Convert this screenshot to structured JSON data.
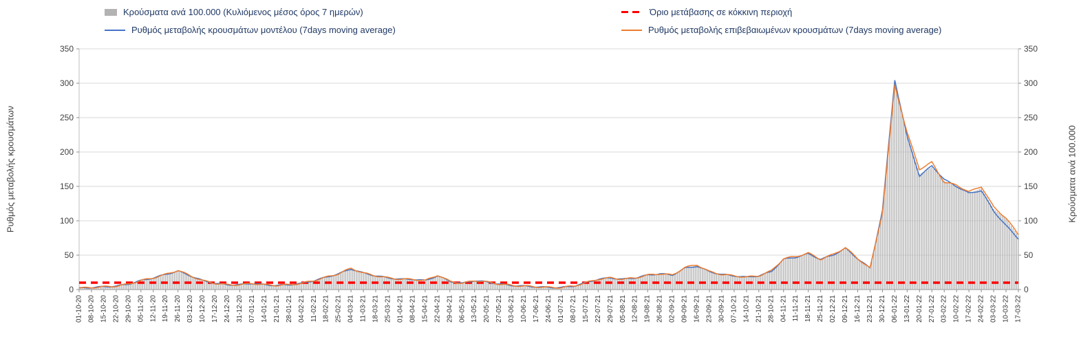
{
  "axes": {
    "left_title": "Ρυθμός μεταβολής κρουσμάτων",
    "right_title": "Κρούσματα ανά 100.000",
    "ylim": [
      0,
      350
    ],
    "ytick_step": 50
  },
  "chart_data": {
    "type": "bar",
    "title": "",
    "legend_position": "top",
    "grid": true,
    "ylim": [
      0,
      350
    ],
    "categories": [
      "01-10-20",
      "08-10-20",
      "15-10-20",
      "22-10-20",
      "29-10-20",
      "05-11-20",
      "12-11-20",
      "19-11-20",
      "26-11-20",
      "03-12-20",
      "10-12-20",
      "17-12-20",
      "24-12-20",
      "31-12-20",
      "07-01-21",
      "14-01-21",
      "21-01-21",
      "28-01-21",
      "04-02-21",
      "11-02-21",
      "18-02-21",
      "25-02-21",
      "04-03-21",
      "11-03-21",
      "18-03-21",
      "25-03-21",
      "01-04-21",
      "08-04-21",
      "15-04-21",
      "22-04-21",
      "29-04-21",
      "06-05-21",
      "13-05-21",
      "20-05-21",
      "27-05-21",
      "03-06-21",
      "10-06-21",
      "17-06-21",
      "24-06-21",
      "01-07-21",
      "08-07-21",
      "15-07-21",
      "22-07-21",
      "29-07-21",
      "05-08-21",
      "12-08-21",
      "19-08-21",
      "26-08-21",
      "02-09-21",
      "09-09-21",
      "16-09-21",
      "23-09-21",
      "30-09-21",
      "07-10-21",
      "14-10-21",
      "21-10-21",
      "28-10-21",
      "04-11-21",
      "11-11-21",
      "18-11-21",
      "25-11-21",
      "02-12-21",
      "09-12-21",
      "16-12-21",
      "23-12-21",
      "30-12-21",
      "06-01-22",
      "13-01-22",
      "20-01-22",
      "27-01-22",
      "03-02-22",
      "10-02-22",
      "17-02-22",
      "24-02-22",
      "03-03-22",
      "10-03-22",
      "17-03-22"
    ],
    "series": [
      {
        "name": "Κρούσματα ανά 100.000 (Κυλιόμενος μέσος όρος 7 ημερών)",
        "type": "bar",
        "color": "#B3B3B3",
        "values": [
          2,
          3,
          4,
          5,
          8,
          13,
          17,
          22,
          27,
          20,
          13,
          9,
          7,
          7,
          9,
          7,
          6,
          7,
          9,
          13,
          18,
          23,
          30,
          24,
          20,
          17,
          15,
          15,
          13,
          20,
          12,
          9,
          13,
          11,
          8,
          6,
          5,
          4,
          3,
          3,
          5,
          10,
          15,
          17,
          15,
          17,
          21,
          23,
          21,
          31,
          35,
          26,
          22,
          20,
          18,
          20,
          26,
          44,
          47,
          52,
          44,
          50,
          60,
          45,
          31,
          110,
          300,
          225,
          168,
          178,
          158,
          150,
          140,
          147,
          117,
          103,
          78
        ]
      },
      {
        "name": "Ρυθμός μεταβολής κρουσμάτων μοντέλου (7days moving average)",
        "type": "line",
        "color": "#4472C4",
        "values": [
          2,
          3,
          4,
          5,
          8,
          13,
          17,
          22,
          27,
          20,
          13,
          9,
          7,
          7,
          9,
          7,
          6,
          7,
          9,
          13,
          18,
          23,
          30,
          24,
          20,
          17,
          15,
          15,
          13,
          20,
          12,
          9,
          13,
          11,
          8,
          6,
          5,
          4,
          3,
          3,
          5,
          10,
          15,
          17,
          15,
          17,
          21,
          23,
          21,
          31,
          34,
          26,
          22,
          20,
          18,
          20,
          26,
          44,
          47,
          52,
          44,
          50,
          60,
          45,
          31,
          115,
          305,
          222,
          165,
          180,
          160,
          150,
          140,
          144,
          114,
          93,
          74
        ]
      },
      {
        "name": "Ρυθμός μεταβολής επιβεβαιωμένων κρουσμάτων (7days moving average)",
        "type": "line",
        "color": "#ED7D31",
        "values": [
          2,
          3,
          4,
          5,
          8,
          13,
          17,
          22,
          28,
          20,
          13,
          9,
          7,
          7,
          9,
          7,
          6,
          7,
          9,
          13,
          18,
          23,
          31,
          24,
          20,
          17,
          15,
          15,
          13,
          21,
          12,
          9,
          13,
          11,
          8,
          6,
          5,
          4,
          3,
          3,
          5,
          10,
          15,
          17,
          15,
          17,
          21,
          23,
          21,
          32,
          36,
          26,
          22,
          20,
          18,
          20,
          27,
          45,
          48,
          53,
          44,
          51,
          61,
          45,
          31,
          112,
          297,
          228,
          175,
          185,
          156,
          152,
          142,
          150,
          120,
          104,
          80
        ]
      },
      {
        "name": "Όριο μετάβασης σε κόκκινη περιοχή",
        "type": "threshold",
        "color": "#FF0000",
        "value": 10
      }
    ]
  }
}
